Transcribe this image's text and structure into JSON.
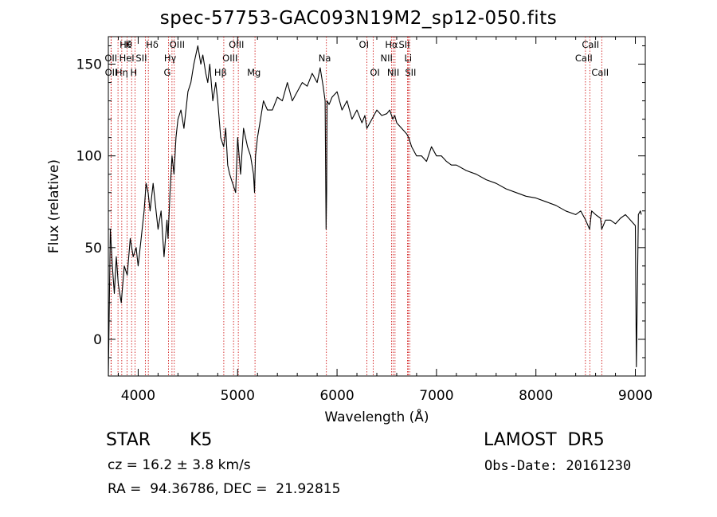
{
  "chart_data": {
    "type": "line",
    "title": "spec-57753-GAC093N19M2_sp12-050.fits",
    "xlabel": "Wavelength (Å)",
    "ylabel": "Flux (relative)",
    "xlim": [
      3700,
      9100
    ],
    "ylim": [
      -20,
      165
    ],
    "xticks": [
      4000,
      5000,
      6000,
      7000,
      8000,
      9000
    ],
    "yticks": [
      0,
      50,
      100,
      150
    ],
    "grid": false,
    "line_color": "#000000",
    "marker_color": "#cc0000",
    "series": [
      {
        "x": [
          3700,
          3720,
          3740,
          3760,
          3780,
          3800,
          3830,
          3860,
          3890,
          3920,
          3950,
          3980,
          4000,
          4030,
          4060,
          4080,
          4100,
          4120,
          4150,
          4180,
          4200,
          4230,
          4260,
          4290,
          4300,
          4320,
          4340,
          4360,
          4380,
          4400,
          4430,
          4460,
          4500,
          4530,
          4560,
          4600,
          4630,
          4650,
          4680,
          4700,
          4720,
          4750,
          4780,
          4800,
          4830,
          4860,
          4880,
          4900,
          4920,
          4950,
          4980,
          5000,
          5030,
          5060,
          5100,
          5130,
          5160,
          5170,
          5180,
          5200,
          5230,
          5260,
          5300,
          5350,
          5400,
          5450,
          5500,
          5550,
          5600,
          5650,
          5700,
          5750,
          5800,
          5830,
          5860,
          5880,
          5890,
          5895,
          5900,
          5920,
          5950,
          6000,
          6050,
          6100,
          6150,
          6200,
          6250,
          6280,
          6300,
          6350,
          6400,
          6450,
          6500,
          6530,
          6560,
          6580,
          6600,
          6650,
          6700,
          6720,
          6750,
          6800,
          6850,
          6900,
          6950,
          7000,
          7050,
          7100,
          7150,
          7200,
          7300,
          7400,
          7500,
          7600,
          7700,
          7800,
          7900,
          8000,
          8100,
          8200,
          8300,
          8400,
          8450,
          8500,
          8540,
          8560,
          8600,
          8650,
          8662,
          8700,
          8750,
          8800,
          8850,
          8900,
          8950,
          9000,
          9010,
          9030,
          9050,
          9060
        ],
        "y": [
          -20,
          60,
          40,
          25,
          45,
          30,
          20,
          40,
          35,
          55,
          45,
          50,
          40,
          55,
          70,
          85,
          80,
          70,
          85,
          70,
          60,
          70,
          45,
          65,
          55,
          80,
          100,
          90,
          110,
          120,
          125,
          115,
          135,
          140,
          150,
          160,
          150,
          155,
          145,
          140,
          150,
          130,
          140,
          130,
          110,
          105,
          115,
          95,
          90,
          85,
          80,
          110,
          90,
          115,
          105,
          100,
          90,
          80,
          100,
          110,
          120,
          130,
          125,
          125,
          132,
          130,
          140,
          130,
          135,
          140,
          138,
          145,
          140,
          148,
          138,
          130,
          60,
          80,
          130,
          128,
          132,
          135,
          125,
          130,
          120,
          125,
          118,
          122,
          115,
          120,
          125,
          122,
          123,
          125,
          120,
          122,
          118,
          115,
          112,
          110,
          105,
          100,
          100,
          97,
          105,
          100,
          100,
          97,
          95,
          95,
          92,
          90,
          87,
          85,
          82,
          80,
          78,
          77,
          75,
          73,
          70,
          68,
          70,
          65,
          60,
          70,
          68,
          66,
          60,
          65,
          65,
          63,
          66,
          68,
          65,
          62,
          -15,
          68,
          70,
          68
        ]
      }
    ],
    "lines": [
      {
        "label": "Hθ",
        "wavelength": 3797,
        "row": 0,
        "dx": 2
      },
      {
        "label": "K",
        "wavelength": 3934,
        "row": 0,
        "dx": -8
      },
      {
        "label": "Hδ",
        "wavelength": 4102,
        "row": 0,
        "dx": -3
      },
      {
        "label": "OIII",
        "wavelength": 4363,
        "row": 0,
        "dx": -6
      },
      {
        "label": "OIII",
        "wavelength": 5007,
        "row": 0,
        "dx": -12
      },
      {
        "label": "OI",
        "wavelength": 6300,
        "row": 0,
        "dx": -10
      },
      {
        "label": "Hα",
        "wavelength": 6563,
        "row": 0,
        "dx": -10
      },
      {
        "label": "SII",
        "wavelength": 6716,
        "row": 0,
        "dx": -12
      },
      {
        "label": "CaII",
        "wavelength": 8542,
        "row": 0,
        "dx": -10
      },
      {
        "label": "OII",
        "wavelength": 3727,
        "row": 1,
        "dx": -8
      },
      {
        "label": "HeI",
        "wavelength": 3889,
        "row": 1,
        "dx": -10
      },
      {
        "label": "SII",
        "wavelength": 4072,
        "row": 1,
        "dx": -12
      },
      {
        "label": "Hγ",
        "wavelength": 4340,
        "row": 1,
        "dx": -10
      },
      {
        "label": "OIII",
        "wavelength": 4959,
        "row": 1,
        "dx": -14
      },
      {
        "label": "Na",
        "wavelength": 5893,
        "row": 1,
        "dx": -10
      },
      {
        "label": "NII",
        "wavelength": 6548,
        "row": 1,
        "dx": -14
      },
      {
        "label": "Li",
        "wavelength": 6708,
        "row": 1,
        "dx": -4
      },
      {
        "label": "CaII",
        "wavelength": 8498,
        "row": 1,
        "dx": -13
      },
      {
        "label": "OII",
        "wavelength": 3729,
        "row": 2,
        "dx": -8
      },
      {
        "label": "Hη",
        "wavelength": 3835,
        "row": 2,
        "dx": -8
      },
      {
        "label": "H",
        "wavelength": 3968,
        "row": 2,
        "dx": -6
      },
      {
        "label": "G",
        "wavelength": 4305,
        "row": 2,
        "dx": -6
      },
      {
        "label": "Hβ",
        "wavelength": 4861,
        "row": 2,
        "dx": -12
      },
      {
        "label": "Mg",
        "wavelength": 5175,
        "row": 2,
        "dx": -10
      },
      {
        "label": "OI",
        "wavelength": 6363,
        "row": 2,
        "dx": -4
      },
      {
        "label": "NII",
        "wavelength": 6583,
        "row": 2,
        "dx": -10
      },
      {
        "label": "SII",
        "wavelength": 6731,
        "row": 2,
        "dx": -6
      },
      {
        "label": "CaII",
        "wavelength": 8662,
        "row": 2,
        "dx": -13
      }
    ]
  },
  "info": {
    "class_label": "STAR",
    "subclass": "K5",
    "survey": "LAMOST  DR5",
    "cz": "cz = 16.2 ± 3.8 km/s",
    "obs_date": "Obs-Date: 20161230",
    "coords": "RA =  94.36786, DEC =  21.92815"
  }
}
